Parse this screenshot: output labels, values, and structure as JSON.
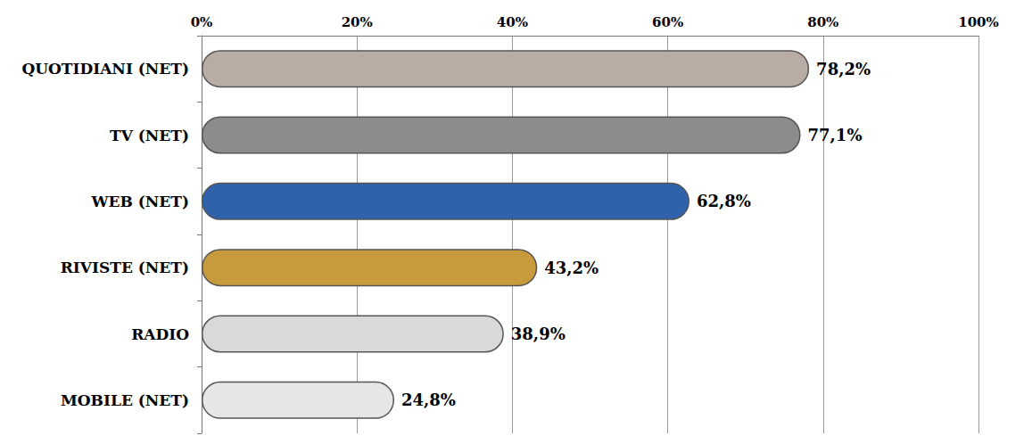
{
  "chart_data": {
    "type": "bar",
    "orientation": "horizontal",
    "categories": [
      "QUOTIDIANI (NET)",
      "TV (NET)",
      "WEB (NET)",
      "RIVISTE (NET)",
      "RADIO",
      "MOBILE (NET)"
    ],
    "values": [
      78.2,
      77.1,
      62.8,
      43.2,
      38.9,
      24.8
    ],
    "value_labels": [
      "78,2%",
      "77,1%",
      "62,8%",
      "43,2%",
      "38,9%",
      "24,8%"
    ],
    "colors": [
      "#b9aca4",
      "#8c8c8c",
      "#2f62aa",
      "#c79a3c",
      "#d9d9d9",
      "#e6e6e6"
    ],
    "xlim": [
      0,
      100
    ],
    "xticks": [
      {
        "value": 0,
        "label": "0%"
      },
      {
        "value": 20,
        "label": "20%"
      },
      {
        "value": 40,
        "label": "40%"
      },
      {
        "value": 60,
        "label": "60%"
      },
      {
        "value": 80,
        "label": "80%"
      },
      {
        "value": 100,
        "label": "100%"
      }
    ],
    "grid": true,
    "data_labels": true
  }
}
